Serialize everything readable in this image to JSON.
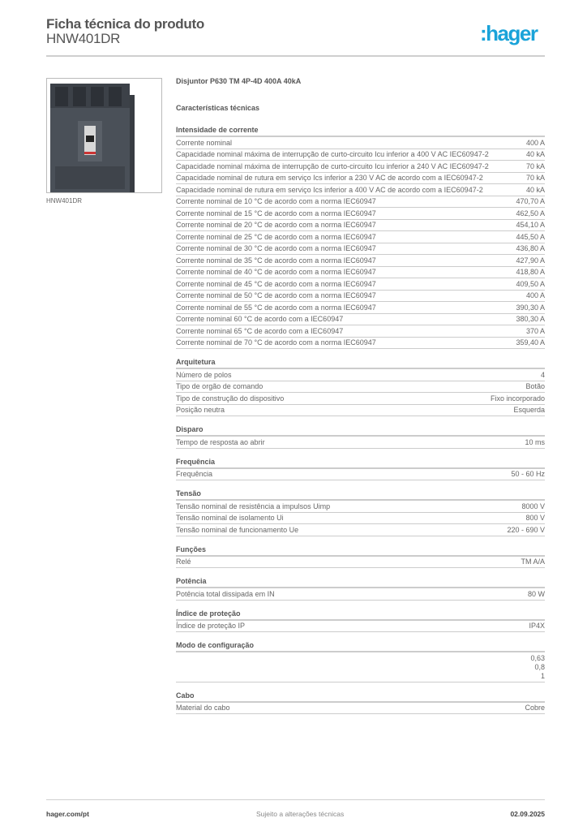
{
  "header": {
    "title": "Ficha técnica do produto",
    "subtitle": "HNW401DR",
    "logo": ":hager",
    "logo_color": "#1aa3d9"
  },
  "product": {
    "caption": "HNW401DR",
    "name": "Disjuntor P630 TM 4P-4D 400A 40kA",
    "characteristics_title": "Características técnicas"
  },
  "sections": [
    {
      "title": "Intensidade de corrente",
      "rows": [
        {
          "label": "Corrente nominal",
          "value": "400 A"
        },
        {
          "label": "Capacidade nominal máxima de interrupção de curto-circuito Icu inferior a 400 V AC IEC60947-2",
          "value": "40 kA"
        },
        {
          "label": "Capacidade nominal máxima de interrupção de curto-circuito Icu inferior a 240 V AC IEC60947-2",
          "value": "70 kA"
        },
        {
          "label": "Capacidade nominal de rutura em serviço Ics inferior a 230 V AC de acordo com a IEC60947-2",
          "value": "70 kA"
        },
        {
          "label": "Capacidade nominal de rutura em serviço Ics inferior a 400 V AC de acordo com a IEC60947-2",
          "value": "40 kA"
        },
        {
          "label": "Corrente nominal de 10 °C de acordo com a norma IEC60947",
          "value": "470,70 A"
        },
        {
          "label": "Corrente nominal de 15 °C de acordo com a norma IEC60947",
          "value": "462,50 A"
        },
        {
          "label": "Corrente nominal de 20 °C de acordo com a norma IEC60947",
          "value": "454,10 A"
        },
        {
          "label": "Corrente nominal de 25 °C de acordo com a norma IEC60947",
          "value": "445,50 A"
        },
        {
          "label": "Corrente nominal de 30 °C de acordo com a norma IEC60947",
          "value": "436,80 A"
        },
        {
          "label": "Corrente nominal de 35 °C de acordo com a norma IEC60947",
          "value": "427,90 A"
        },
        {
          "label": "Corrente nominal de 40 °C de acordo com a norma IEC60947",
          "value": "418,80 A"
        },
        {
          "label": "Corrente nominal de 45 °C de acordo com a norma IEC60947",
          "value": "409,50 A"
        },
        {
          "label": "Corrente nominal de 50 °C de acordo com a norma IEC60947",
          "value": "400 A"
        },
        {
          "label": "Corrente nominal de 55 °C de acordo com a norma IEC60947",
          "value": "390,30 A"
        },
        {
          "label": "Corrente nominal 60 °C de acordo com a IEC60947",
          "value": "380,30 A"
        },
        {
          "label": "Corrente nominal 65 °C de acordo com a IEC60947",
          "value": "370 A"
        },
        {
          "label": "Corrente nominal de 70 °C de acordo com a norma IEC60947",
          "value": "359,40 A"
        }
      ]
    },
    {
      "title": "Arquitetura",
      "rows": [
        {
          "label": "Número de polos",
          "value": "4"
        },
        {
          "label": "Tipo de orgão de comando",
          "value": "Botão"
        },
        {
          "label": "Tipo de construção do dispositivo",
          "value": "Fixo incorporado"
        },
        {
          "label": "Posição neutra",
          "value": "Esquerda"
        }
      ]
    },
    {
      "title": "Disparo",
      "rows": [
        {
          "label": "Tempo de resposta ao abrir",
          "value": "10 ms"
        }
      ]
    },
    {
      "title": "Frequência",
      "rows": [
        {
          "label": "Frequência",
          "value": "50 - 60 Hz"
        }
      ]
    },
    {
      "title": "Tensão",
      "rows": [
        {
          "label": "Tensão nominal de resistência a impulsos Uimp",
          "value": "8000 V"
        },
        {
          "label": "Tensão nominal de isolamento Ui",
          "value": "800 V"
        },
        {
          "label": "Tensão nominal de funcionamento Ue",
          "value": "220 - 690 V"
        }
      ]
    },
    {
      "title": "Funções",
      "rows": [
        {
          "label": "Relé",
          "value": "TM A/A"
        }
      ]
    },
    {
      "title": "Potência",
      "rows": [
        {
          "label": "Potência total dissipada em IN",
          "value": "80 W"
        }
      ]
    },
    {
      "title": "Índice de proteção",
      "rows": [
        {
          "label": "Índice de proteção IP",
          "value": "IP4X"
        }
      ]
    },
    {
      "title": "Modo de configuração",
      "rows": [
        {
          "label": "",
          "value": [
            "0,63",
            "0,8",
            "1"
          ]
        }
      ]
    },
    {
      "title": "Cabo",
      "rows": [
        {
          "label": "Material do cabo",
          "value": "Cobre"
        }
      ]
    }
  ],
  "footer": {
    "website": "hager.com/pt",
    "notice": "Sujeito a alterações técnicas",
    "date": "02.09.2025"
  }
}
